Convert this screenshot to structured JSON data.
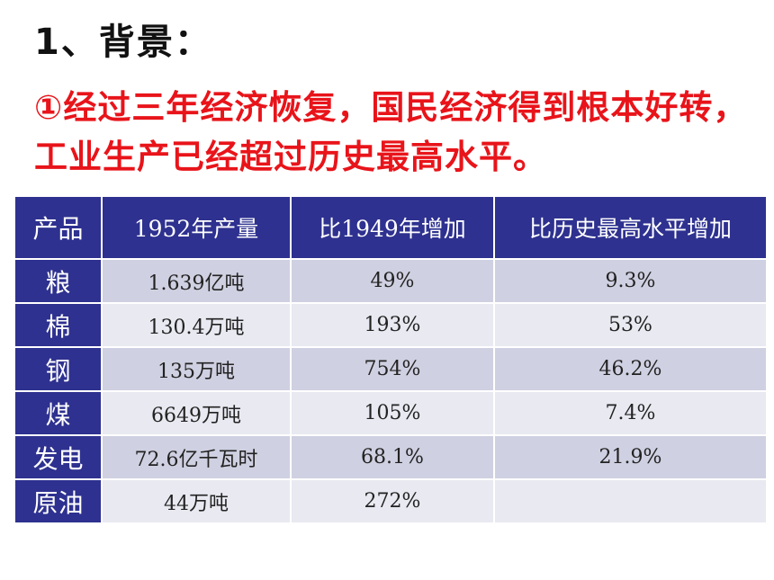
{
  "heading": "1、背景：",
  "point": "①经过三年经济恢复，国民经济得到根本好转，工业生产已经超过历史最高水平。",
  "table": {
    "headers": [
      "产品",
      "1952年产量",
      "比1949年增加",
      "比历史最高水平增加"
    ],
    "rows": [
      [
        "粮",
        "1.639亿吨",
        "49%",
        "9.3%"
      ],
      [
        "棉",
        "130.4万吨",
        "193%",
        "53%"
      ],
      [
        "钢",
        "135万吨",
        "754%",
        "46.2%"
      ],
      [
        "煤",
        "6649万吨",
        "105%",
        "7.4%"
      ],
      [
        "发电",
        "72.6亿千瓦时",
        "68.1%",
        "21.9%"
      ],
      [
        "原油",
        "44万吨",
        "272%",
        ""
      ]
    ]
  },
  "colors": {
    "header_bg": "#2e318f",
    "row_odd": "#cfd0e1",
    "row_even": "#e8e9f1",
    "point_text": "#e8141a"
  }
}
